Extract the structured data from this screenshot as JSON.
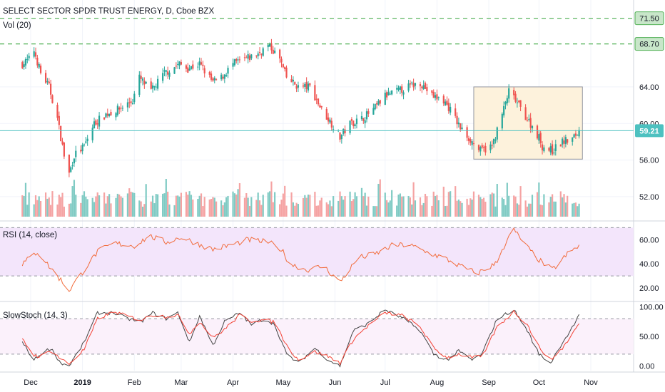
{
  "header": {
    "title": "SELECT SECTOR SPDR TRUST ENERGY, D, Cboe BZX",
    "volume_label": "Vol (20)"
  },
  "rsi_panel": {
    "label": "RSI (14, close)",
    "ticks": [
      "60.00",
      "40.00",
      "20.00"
    ]
  },
  "stoch_panel": {
    "label": "SlowStoch (14, 3)",
    "ticks": [
      "100.00",
      "50.00",
      "0.00"
    ]
  },
  "colors": {
    "up": "#26a69a",
    "down": "#ef5350",
    "vol_up": "#80cbc4",
    "vol_down": "#f5a3a3",
    "level_line": "#4caf50",
    "price_line": "#4dc1c0",
    "box_fill": "#fdf2dc",
    "rsi_bg": "#f3e5fb",
    "rsi_line": "#f26b3a",
    "stoch_k": "#444444",
    "stoch_d": "#f44336"
  },
  "chart_data": [
    {
      "type": "candlestick",
      "title": "SELECT SECTOR SPDR TRUST ENERGY, D, Cboe BZX",
      "x_ticks": [
        "Dec",
        "2019",
        "Feb",
        "Mar",
        "Apr",
        "May",
        "Jun",
        "Jul",
        "Aug",
        "Sep",
        "Oct",
        "Nov"
      ],
      "y_ticks": [
        "64.00",
        "60.00",
        "56.00",
        "52.00"
      ],
      "ylim": [
        49.5,
        73.5
      ],
      "horizontal_levels": [
        {
          "label": "71.50",
          "value": 71.5
        },
        {
          "label": "68.70",
          "value": 68.7
        }
      ],
      "last_price": {
        "label": "59.21",
        "value": 59.21
      },
      "highlight_range": {
        "price_low": 56.1,
        "price_high": 64.0
      },
      "close_path": [
        [
          "2018-11-26",
          66.5
        ],
        [
          "2018-11-30",
          67.0
        ],
        [
          "2018-12-03",
          68.0
        ],
        [
          "2018-12-07",
          65.5
        ],
        [
          "2018-12-12",
          64.0
        ],
        [
          "2018-12-17",
          60.5
        ],
        [
          "2018-12-21",
          56.5
        ],
        [
          "2018-12-24",
          54.5
        ],
        [
          "2018-12-27",
          56.5
        ],
        [
          "2019-01-02",
          57.5
        ],
        [
          "2019-01-08",
          60.0
        ],
        [
          "2019-01-15",
          61.0
        ],
        [
          "2019-01-22",
          61.5
        ],
        [
          "2019-01-31",
          62.5
        ],
        [
          "2019-02-04",
          65.0
        ],
        [
          "2019-02-11",
          63.5
        ],
        [
          "2019-02-19",
          65.5
        ],
        [
          "2019-02-28",
          66.5
        ],
        [
          "2019-03-05",
          66.0
        ],
        [
          "2019-03-12",
          66.5
        ],
        [
          "2019-03-20",
          64.5
        ],
        [
          "2019-03-25",
          65.0
        ],
        [
          "2019-04-01",
          66.5
        ],
        [
          "2019-04-08",
          67.0
        ],
        [
          "2019-04-15",
          67.5
        ],
        [
          "2019-04-22",
          68.5
        ],
        [
          "2019-04-24",
          68.2
        ],
        [
          "2019-04-29",
          67.0
        ],
        [
          "2019-05-03",
          65.0
        ],
        [
          "2019-05-10",
          64.0
        ],
        [
          "2019-05-17",
          64.0
        ],
        [
          "2019-05-24",
          61.5
        ],
        [
          "2019-06-01",
          59.5
        ],
        [
          "2019-06-04",
          58.5
        ],
        [
          "2019-06-10",
          60.0
        ],
        [
          "2019-06-17",
          60.5
        ],
        [
          "2019-06-24",
          61.5
        ],
        [
          "2019-07-01",
          63.0
        ],
        [
          "2019-07-08",
          63.5
        ],
        [
          "2019-07-15",
          64.0
        ],
        [
          "2019-07-22",
          64.5
        ],
        [
          "2019-07-29",
          63.0
        ],
        [
          "2019-08-05",
          62.5
        ],
        [
          "2019-08-09",
          61.5
        ],
        [
          "2019-08-15",
          59.5
        ],
        [
          "2019-08-22",
          58.0
        ],
        [
          "2019-08-27",
          57.0
        ],
        [
          "2019-09-03",
          57.5
        ],
        [
          "2019-09-09",
          61.0
        ],
        [
          "2019-09-13",
          63.5
        ],
        [
          "2019-09-17",
          62.5
        ],
        [
          "2019-09-24",
          60.5
        ],
        [
          "2019-10-01",
          58.5
        ],
        [
          "2019-10-03",
          57.5
        ],
        [
          "2019-10-09",
          57.0
        ],
        [
          "2019-10-15",
          58.0
        ],
        [
          "2019-10-21",
          58.3
        ],
        [
          "2019-10-25",
          59.21
        ]
      ]
    },
    {
      "type": "line",
      "name": "RSI (14, close)",
      "y_ticks": [
        "60.00",
        "40.00",
        "20.00"
      ],
      "ylim": [
        10,
        72
      ],
      "bands": [
        30,
        70
      ],
      "points": [
        [
          "2018-11-26",
          40
        ],
        [
          "2018-12-05",
          50
        ],
        [
          "2018-12-12",
          38
        ],
        [
          "2018-12-20",
          25
        ],
        [
          "2018-12-24",
          18
        ],
        [
          "2019-01-02",
          35
        ],
        [
          "2019-01-10",
          50
        ],
        [
          "2019-01-20",
          57
        ],
        [
          "2019-02-01",
          55
        ],
        [
          "2019-02-10",
          63
        ],
        [
          "2019-02-20",
          58
        ],
        [
          "2019-03-01",
          62
        ],
        [
          "2019-03-12",
          56
        ],
        [
          "2019-03-20",
          52
        ],
        [
          "2019-04-01",
          56
        ],
        [
          "2019-04-10",
          60
        ],
        [
          "2019-04-22",
          58
        ],
        [
          "2019-04-30",
          52
        ],
        [
          "2019-05-05",
          40
        ],
        [
          "2019-05-15",
          35
        ],
        [
          "2019-05-25",
          38
        ],
        [
          "2019-06-04",
          25
        ],
        [
          "2019-06-15",
          45
        ],
        [
          "2019-06-25",
          48
        ],
        [
          "2019-07-05",
          55
        ],
        [
          "2019-07-15",
          56
        ],
        [
          "2019-07-25",
          50
        ],
        [
          "2019-08-05",
          45
        ],
        [
          "2019-08-15",
          38
        ],
        [
          "2019-08-25",
          32
        ],
        [
          "2019-09-05",
          40
        ],
        [
          "2019-09-12",
          60
        ],
        [
          "2019-09-16",
          68
        ],
        [
          "2019-09-25",
          52
        ],
        [
          "2019-10-02",
          42
        ],
        [
          "2019-10-09",
          35
        ],
        [
          "2019-10-18",
          48
        ],
        [
          "2019-10-25",
          55
        ]
      ]
    },
    {
      "type": "line",
      "name": "SlowStoch (14, 3)",
      "y_ticks": [
        "100.00",
        "50.00",
        "0.00"
      ],
      "ylim": [
        -8,
        108
      ],
      "bands": [
        20,
        80
      ],
      "series": [
        {
          "points": [
            [
              "2018-11-26",
              40
            ],
            [
              "2018-12-03",
              10
            ],
            [
              "2018-12-07",
              20
            ],
            [
              "2018-12-13",
              30
            ],
            [
              "2018-12-19",
              5
            ],
            [
              "2018-12-24",
              0
            ],
            [
              "2019-01-02",
              40
            ],
            [
              "2019-01-10",
              90
            ],
            [
              "2019-01-20",
              90
            ],
            [
              "2019-01-28",
              80
            ],
            [
              "2019-02-05",
              75
            ],
            [
              "2019-02-12",
              90
            ],
            [
              "2019-02-20",
              80
            ],
            [
              "2019-02-27",
              90
            ],
            [
              "2019-03-06",
              40
            ],
            [
              "2019-03-12",
              85
            ],
            [
              "2019-03-20",
              35
            ],
            [
              "2019-03-27",
              75
            ],
            [
              "2019-04-05",
              90
            ],
            [
              "2019-04-12",
              70
            ],
            [
              "2019-04-20",
              80
            ],
            [
              "2019-04-26",
              70
            ],
            [
              "2019-05-03",
              20
            ],
            [
              "2019-05-10",
              5
            ],
            [
              "2019-05-20",
              30
            ],
            [
              "2019-05-28",
              10
            ],
            [
              "2019-06-04",
              0
            ],
            [
              "2019-06-12",
              60
            ],
            [
              "2019-06-20",
              70
            ],
            [
              "2019-07-01",
              95
            ],
            [
              "2019-07-12",
              80
            ],
            [
              "2019-07-22",
              60
            ],
            [
              "2019-07-30",
              20
            ],
            [
              "2019-08-07",
              10
            ],
            [
              "2019-08-14",
              25
            ],
            [
              "2019-08-22",
              10
            ],
            [
              "2019-08-28",
              20
            ],
            [
              "2019-09-06",
              80
            ],
            [
              "2019-09-16",
              95
            ],
            [
              "2019-09-24",
              60
            ],
            [
              "2019-10-01",
              20
            ],
            [
              "2019-10-08",
              5
            ],
            [
              "2019-10-15",
              40
            ],
            [
              "2019-10-20",
              60
            ],
            [
              "2019-10-25",
              85
            ]
          ]
        },
        {
          "points": [
            [
              "2018-11-26",
              45
            ],
            [
              "2018-12-03",
              18
            ],
            [
              "2018-12-07",
              16
            ],
            [
              "2018-12-13",
              26
            ],
            [
              "2018-12-19",
              12
            ],
            [
              "2018-12-24",
              3
            ],
            [
              "2019-01-02",
              28
            ],
            [
              "2019-01-10",
              80
            ],
            [
              "2019-01-20",
              92
            ],
            [
              "2019-01-28",
              84
            ],
            [
              "2019-02-05",
              78
            ],
            [
              "2019-02-12",
              86
            ],
            [
              "2019-02-20",
              84
            ],
            [
              "2019-02-27",
              86
            ],
            [
              "2019-03-06",
              55
            ],
            [
              "2019-03-12",
              75
            ],
            [
              "2019-03-20",
              48
            ],
            [
              "2019-03-27",
              62
            ],
            [
              "2019-04-05",
              86
            ],
            [
              "2019-04-12",
              76
            ],
            [
              "2019-04-20",
              78
            ],
            [
              "2019-04-26",
              74
            ],
            [
              "2019-05-03",
              35
            ],
            [
              "2019-05-10",
              10
            ],
            [
              "2019-05-20",
              24
            ],
            [
              "2019-05-28",
              16
            ],
            [
              "2019-06-04",
              5
            ],
            [
              "2019-06-12",
              45
            ],
            [
              "2019-06-20",
              66
            ],
            [
              "2019-07-01",
              90
            ],
            [
              "2019-07-12",
              85
            ],
            [
              "2019-07-22",
              66
            ],
            [
              "2019-07-30",
              30
            ],
            [
              "2019-08-07",
              14
            ],
            [
              "2019-08-14",
              20
            ],
            [
              "2019-08-22",
              14
            ],
            [
              "2019-08-28",
              16
            ],
            [
              "2019-09-06",
              66
            ],
            [
              "2019-09-16",
              92
            ],
            [
              "2019-09-24",
              70
            ],
            [
              "2019-10-01",
              32
            ],
            [
              "2019-10-08",
              10
            ],
            [
              "2019-10-15",
              30
            ],
            [
              "2019-10-20",
              50
            ],
            [
              "2019-10-25",
              72
            ]
          ]
        }
      ]
    }
  ]
}
